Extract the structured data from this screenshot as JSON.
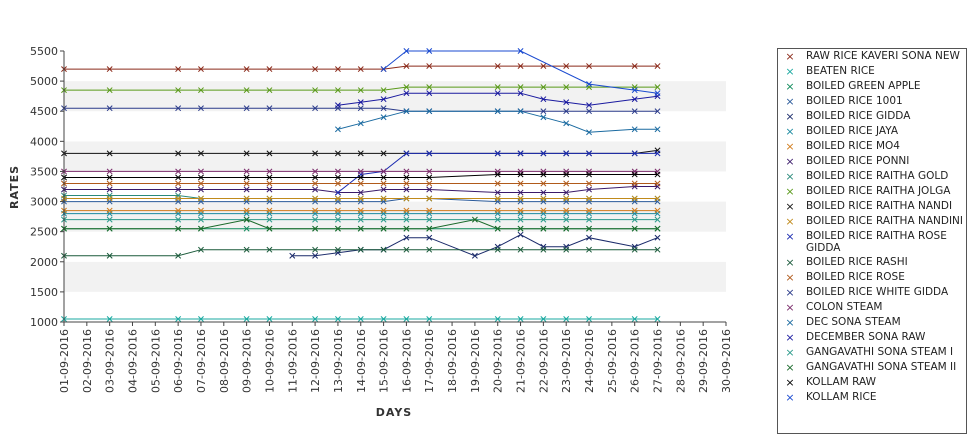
{
  "chart_data": {
    "type": "line",
    "xlabel": "DAYS",
    "ylabel": "RATES",
    "ylim": [
      1000,
      5500
    ],
    "yticks": [
      "1000",
      "1500",
      "2000",
      "2500",
      "3000",
      "3500",
      "4000",
      "4500",
      "5000",
      "5500"
    ],
    "categories": [
      "01-09-2016",
      "02-09-2016",
      "03-09-2016",
      "04-09-2016",
      "05-09-2016",
      "06-09-2016",
      "07-09-2016",
      "08-09-2016",
      "09-09-2016",
      "10-09-2016",
      "11-09-2016",
      "12-09-2016",
      "13-09-2016",
      "14-09-2016",
      "15-09-2016",
      "16-09-2016",
      "17-09-2016",
      "18-09-2016",
      "19-09-2016",
      "20-09-2016",
      "21-09-2016",
      "22-09-2016",
      "23-09-2016",
      "24-09-2016",
      "25-09-2016",
      "26-09-2016",
      "27-09-2016",
      "28-09-2016",
      "29-09-2016",
      "30-09-2016"
    ],
    "grid": "horizontal bands",
    "legend_position": "right",
    "series": [
      {
        "name": " RAW RICE KAVERI SONA NEW",
        "color": "#8b2a1a",
        "values": [
          5200,
          null,
          5200,
          null,
          null,
          5200,
          5200,
          null,
          5200,
          5200,
          null,
          5200,
          5200,
          5200,
          5200,
          5250,
          5250,
          null,
          null,
          5250,
          5250,
          5250,
          5250,
          5250,
          null,
          5250,
          5250,
          null,
          null,
          null
        ]
      },
      {
        "name": "BEATEN RICE",
        "color": "#1aa9a0",
        "values": [
          1050,
          null,
          1050,
          null,
          null,
          1050,
          1050,
          null,
          1050,
          1050,
          null,
          1050,
          1050,
          1050,
          1050,
          1050,
          1050,
          null,
          null,
          1050,
          1050,
          1050,
          1050,
          1050,
          null,
          1050,
          1050,
          null,
          null,
          null
        ]
      },
      {
        "name": "BOILED GREEN APPLE",
        "color": "#0e8a5a",
        "values": [
          2550,
          null,
          2550,
          null,
          null,
          2550,
          2550,
          null,
          2550,
          2550,
          null,
          2550,
          2550,
          2550,
          2550,
          2550,
          2550,
          null,
          null,
          2550,
          2550,
          2550,
          2550,
          2550,
          null,
          2550,
          2550,
          null,
          null,
          null
        ]
      },
      {
        "name": "BOILED RICE 1001",
        "color": "#2a5a9a",
        "values": [
          3000,
          null,
          3000,
          null,
          null,
          3000,
          3000,
          null,
          3000,
          3000,
          null,
          3000,
          3000,
          3000,
          3000,
          3050,
          3050,
          null,
          null,
          3000,
          3000,
          3000,
          3000,
          3000,
          null,
          3000,
          3000,
          null,
          null,
          null
        ]
      },
      {
        "name": "BOILED RICE GIDDA",
        "color": "#1a2a6a",
        "values": [
          null,
          null,
          null,
          null,
          null,
          null,
          null,
          null,
          null,
          null,
          2100,
          2100,
          2150,
          2200,
          2200,
          2400,
          2400,
          null,
          2100,
          2250,
          2450,
          2250,
          2250,
          2400,
          null,
          2250,
          2400,
          null,
          null,
          null
        ]
      },
      {
        "name": "BOILED RICE JAYA",
        "color": "#1a8aa0",
        "values": [
          2800,
          null,
          2800,
          null,
          null,
          2800,
          2800,
          null,
          2800,
          2800,
          null,
          2800,
          2800,
          2800,
          2800,
          2800,
          2800,
          null,
          null,
          2800,
          2800,
          2800,
          2800,
          2800,
          null,
          2800,
          2800,
          null,
          null,
          null
        ]
      },
      {
        "name": "BOILED RICE MO4",
        "color": "#d07a1a",
        "values": [
          2850,
          null,
          2850,
          null,
          null,
          2850,
          2850,
          null,
          2850,
          2850,
          null,
          2850,
          2850,
          2850,
          2850,
          2850,
          2850,
          null,
          null,
          2850,
          2850,
          2850,
          2850,
          2850,
          null,
          2850,
          2850,
          null,
          null,
          null
        ]
      },
      {
        "name": "BOILED RICE PONNI",
        "color": "#3a1a6a",
        "values": [
          3200,
          null,
          3200,
          null,
          null,
          3200,
          3200,
          null,
          3200,
          3200,
          null,
          3200,
          3150,
          3150,
          3200,
          3200,
          3200,
          null,
          null,
          3150,
          3150,
          3150,
          3150,
          3200,
          null,
          3250,
          3250,
          null,
          null,
          null
        ]
      },
      {
        "name": "BOILED RICE RAITHA GOLD",
        "color": "#2a8a7a",
        "values": [
          3100,
          null,
          3100,
          null,
          null,
          3100,
          3050,
          null,
          3050,
          3050,
          null,
          3050,
          3050,
          3050,
          3050,
          3050,
          3050,
          null,
          null,
          3050,
          3050,
          3050,
          3050,
          3050,
          null,
          3050,
          3050,
          null,
          null,
          null
        ]
      },
      {
        "name": "BOILED RICE RAITHA JOLGA",
        "color": "#5a9a1a",
        "values": [
          4850,
          null,
          4850,
          null,
          null,
          4850,
          4850,
          null,
          4850,
          4850,
          null,
          4850,
          4850,
          4850,
          4850,
          4900,
          4900,
          null,
          null,
          4900,
          4900,
          4900,
          4900,
          4900,
          null,
          4900,
          4900,
          null,
          null,
          null
        ]
      },
      {
        "name": "BOILED RICE RAITHA NANDI",
        "color": "#111111",
        "values": [
          3800,
          null,
          3800,
          null,
          null,
          3800,
          3800,
          null,
          3800,
          3800,
          null,
          3800,
          3800,
          3800,
          3800,
          3800,
          3800,
          null,
          null,
          3800,
          3800,
          3800,
          3800,
          3800,
          null,
          3800,
          3850,
          null,
          null,
          null
        ]
      },
      {
        "name": "BOILED RICE RAITHA NANDINI",
        "color": "#c08a1a",
        "values": [
          3050,
          null,
          3050,
          null,
          null,
          3050,
          3050,
          null,
          3050,
          3050,
          null,
          3050,
          3050,
          3050,
          3050,
          3050,
          3050,
          null,
          null,
          3050,
          3050,
          3050,
          3050,
          3050,
          null,
          3050,
          3050,
          null,
          null,
          null
        ]
      },
      {
        "name": "BOILED RICE RAITHA ROSE GIDDA",
        "color": "#1a2ab0",
        "values": [
          null,
          null,
          null,
          null,
          null,
          null,
          null,
          null,
          null,
          null,
          null,
          null,
          3150,
          3450,
          3500,
          3800,
          3800,
          null,
          null,
          3800,
          3800,
          3800,
          3800,
          3800,
          null,
          3800,
          3800,
          null,
          null,
          null
        ]
      },
      {
        "name": "BOILED RICE RASHI",
        "color": "#1a5a3a",
        "values": [
          2100,
          null,
          2100,
          null,
          null,
          2100,
          2200,
          null,
          2200,
          2200,
          null,
          2200,
          2200,
          2200,
          2200,
          2200,
          2200,
          null,
          null,
          2200,
          2200,
          2200,
          2200,
          2200,
          null,
          2200,
          2200,
          null,
          null,
          null
        ]
      },
      {
        "name": "BOILED RICE ROSE",
        "color": "#b05a1a",
        "values": [
          3300,
          null,
          3300,
          null,
          null,
          3300,
          3300,
          null,
          3300,
          3300,
          null,
          3300,
          3300,
          3300,
          3300,
          3300,
          3300,
          null,
          null,
          3300,
          3300,
          3300,
          3300,
          3300,
          null,
          3300,
          3300,
          null,
          null,
          null
        ]
      },
      {
        "name": "BOILED RICE WHITE GIDDA",
        "color": "#2a3a8a",
        "values": [
          4550,
          null,
          4550,
          null,
          null,
          4550,
          4550,
          null,
          4550,
          4550,
          null,
          4550,
          4550,
          4550,
          4550,
          4500,
          4500,
          null,
          null,
          4500,
          4500,
          4500,
          4500,
          4500,
          null,
          4500,
          4500,
          null,
          null,
          null
        ]
      },
      {
        "name": "COLON STEAM",
        "color": "#7a2a6a",
        "values": [
          3500,
          null,
          3500,
          null,
          null,
          3500,
          3500,
          null,
          3500,
          3500,
          null,
          3500,
          3500,
          3500,
          3500,
          3500,
          3500,
          null,
          null,
          3500,
          3500,
          3500,
          3500,
          3500,
          null,
          3500,
          3500,
          null,
          null,
          null
        ]
      },
      {
        "name": "DEC SONA STEAM",
        "color": "#1a6aa0",
        "values": [
          null,
          null,
          null,
          null,
          null,
          null,
          null,
          null,
          null,
          null,
          null,
          null,
          4200,
          4300,
          4400,
          4500,
          4500,
          null,
          null,
          4500,
          4500,
          4400,
          4300,
          4150,
          null,
          4200,
          4200,
          null,
          null,
          null
        ]
      },
      {
        "name": "DECEMBER SONA RAW",
        "color": "#1a1aa0",
        "values": [
          null,
          null,
          null,
          null,
          null,
          null,
          null,
          null,
          null,
          null,
          null,
          null,
          4600,
          4650,
          4700,
          4800,
          4800,
          null,
          null,
          4800,
          4800,
          4700,
          4650,
          4600,
          null,
          4700,
          4750,
          null,
          null,
          null
        ]
      },
      {
        "name": "GANGAVATHI SONA STEAM I",
        "color": "#2a9a8a",
        "values": [
          2700,
          null,
          2700,
          null,
          null,
          2700,
          2700,
          null,
          2700,
          2700,
          null,
          2700,
          2700,
          2700,
          2700,
          2700,
          2700,
          null,
          null,
          2700,
          2700,
          2700,
          2700,
          2700,
          null,
          2700,
          2700,
          null,
          null,
          null
        ]
      },
      {
        "name": "GANGAVATHI SONA STEAM II",
        "color": "#1a6a2a",
        "values": [
          2550,
          null,
          2550,
          null,
          null,
          2550,
          2550,
          null,
          2700,
          2550,
          null,
          2550,
          2550,
          2550,
          2550,
          2550,
          2550,
          null,
          2700,
          2550,
          2550,
          2550,
          2550,
          2550,
          null,
          2550,
          2550,
          null,
          null,
          null
        ]
      },
      {
        "name": "KOLLAM RAW",
        "color": "#000000",
        "values": [
          3400,
          null,
          3400,
          null,
          null,
          3400,
          3400,
          null,
          3400,
          3400,
          null,
          3400,
          3400,
          3400,
          3400,
          3400,
          3400,
          null,
          null,
          3450,
          3450,
          3450,
          3450,
          3450,
          null,
          3450,
          3450,
          null,
          null,
          null
        ]
      },
      {
        "name": "KOLLAM RICE",
        "color": "#1a4ad0",
        "values": [
          null,
          null,
          null,
          null,
          null,
          null,
          null,
          null,
          null,
          null,
          null,
          null,
          null,
          null,
          5200,
          5500,
          5500,
          null,
          null,
          null,
          5500,
          null,
          null,
          4950,
          null,
          4850,
          4800,
          null,
          null,
          null
        ]
      }
    ]
  }
}
